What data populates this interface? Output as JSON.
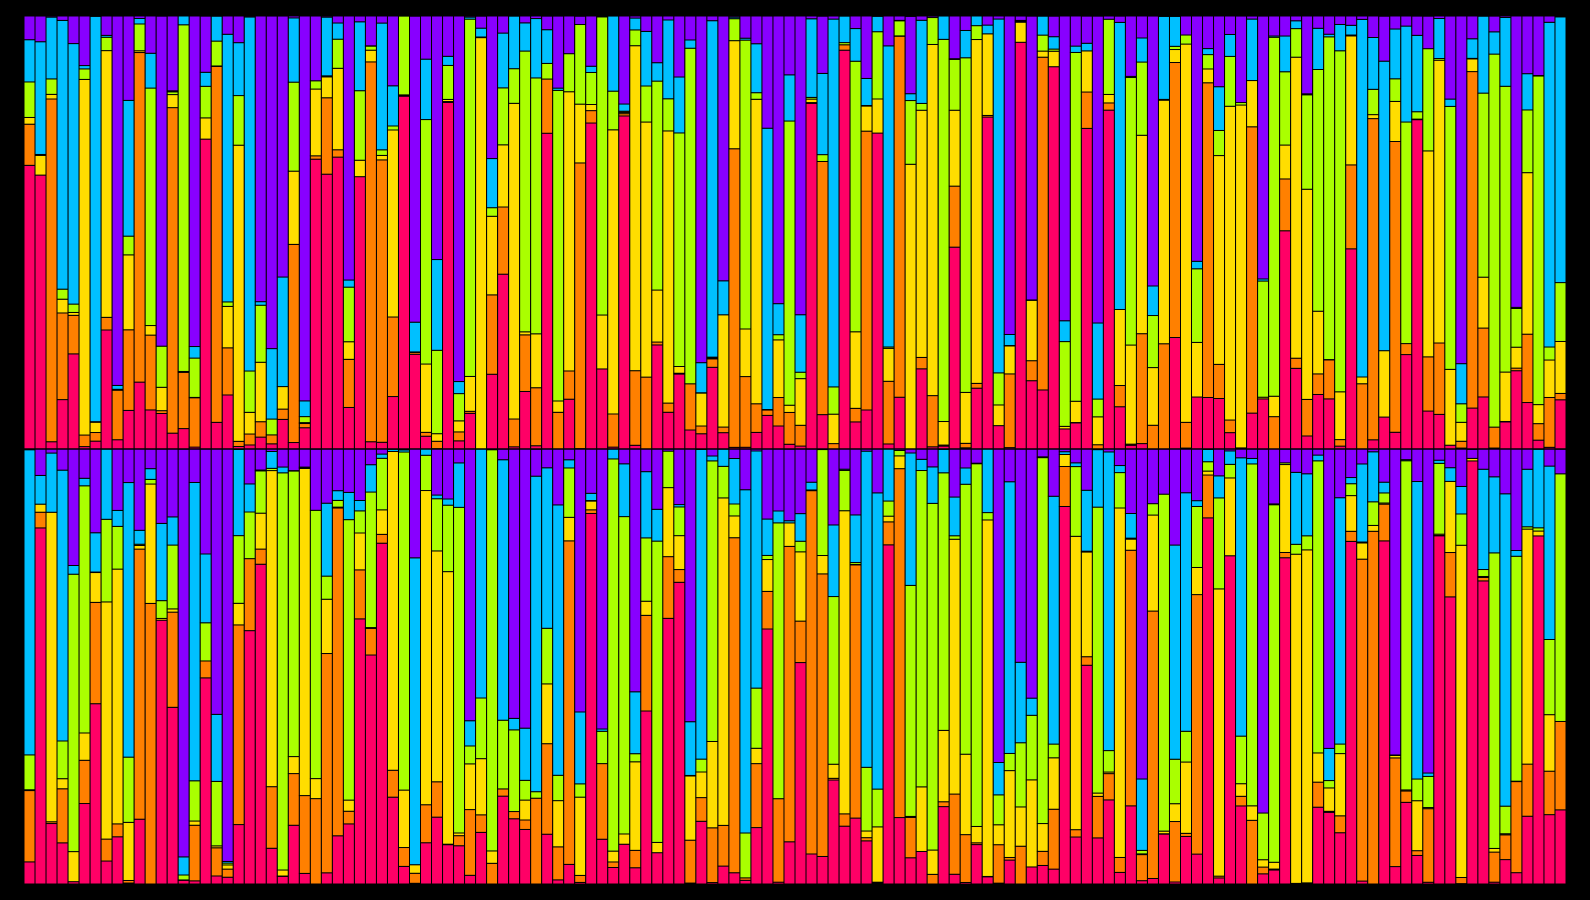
{
  "chart_data": {
    "type": "bar",
    "stacked": true,
    "panels": 2,
    "bars_per_panel": 140,
    "ylim": [
      0,
      1
    ],
    "palette": [
      "#ff0066",
      "#ff8000",
      "#ffdd00",
      "#aaff00",
      "#00c0ff",
      "#8800ff"
    ],
    "background": "#000000",
    "edge_color": "#000000",
    "grid": false,
    "legend": "none"
  }
}
